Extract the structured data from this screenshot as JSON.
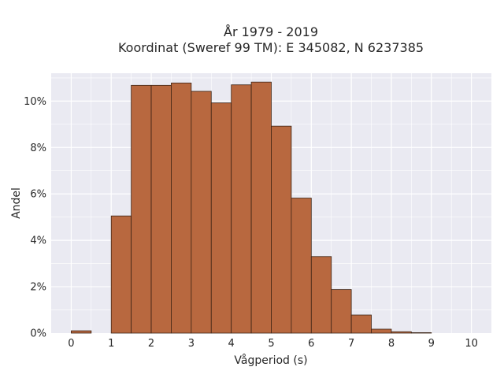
{
  "chart_data": {
    "type": "bar",
    "title_line1": "År 1979 - 2019",
    "title_line2": "Koordinat (Sweref 99 TM): E 345082, N 6237385",
    "xlabel": "Vågperiod (s)",
    "ylabel": "Andel",
    "bin_width": 0.5,
    "x": [
      0,
      0.5,
      1,
      1.5,
      2,
      2.5,
      3,
      3.5,
      4,
      4.5,
      5,
      5.5,
      6,
      6.5,
      7,
      7.5,
      8,
      8.5,
      9,
      9.5
    ],
    "values": [
      0.1,
      0.0,
      5.05,
      10.68,
      10.68,
      10.78,
      10.42,
      9.92,
      10.7,
      10.82,
      8.92,
      5.82,
      3.3,
      1.88,
      0.78,
      0.17,
      0.06,
      0.02,
      0.0,
      0.0
    ],
    "xlim": [
      -0.5,
      10.5
    ],
    "ylim": [
      0,
      11.2
    ],
    "x_ticks": [
      0,
      1,
      2,
      3,
      4,
      5,
      6,
      7,
      8,
      9,
      10
    ],
    "x_tick_labels": [
      "0",
      "1",
      "2",
      "3",
      "4",
      "5",
      "6",
      "7",
      "8",
      "9",
      "10"
    ],
    "y_ticks": [
      0,
      2,
      4,
      6,
      8,
      10
    ],
    "y_tick_labels": [
      "0%",
      "2%",
      "4%",
      "6%",
      "8%",
      "10%"
    ],
    "grid": true,
    "colors": {
      "bar_fill": "#b8683f",
      "bar_edge": "#3b2315",
      "plot_bg": "#eaeaf2",
      "grid": "#ffffff"
    }
  }
}
